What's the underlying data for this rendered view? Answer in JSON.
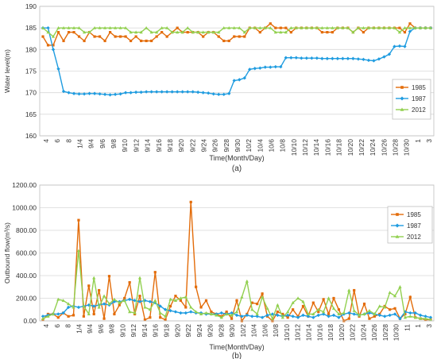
{
  "chart_data": [
    {
      "type": "line",
      "panel_label": "(a)",
      "xlabel": "Time(Month/Day)",
      "ylabel": "Water level(m)",
      "ylim": [
        160,
        190
      ],
      "yticks": [
        "160",
        "165",
        "170",
        "175",
        "180",
        "185",
        "190"
      ],
      "x_tick_labels": [
        "4",
        "6",
        "8",
        "1/4",
        "9/4",
        "9/6",
        "9/8",
        "9/10",
        "9/12",
        "9/14",
        "9/16",
        "9/18",
        "9/20",
        "9/22",
        "9/24",
        "9/26",
        "9/28",
        "9/30",
        "10/2",
        "10/4",
        "10/6",
        "10/8",
        "10/10",
        "10/12",
        "10/14",
        "10/16",
        "10/18",
        "10/20",
        "10/22",
        "10/24",
        "10/26",
        "10/28",
        "10/30",
        "1",
        "3"
      ],
      "grid": "horizontal",
      "legend_position": "right",
      "series": [
        {
          "name": "1985",
          "color": "#E36C0A",
          "marker": "square",
          "values": [
            183,
            181,
            181,
            184,
            182,
            184,
            184,
            183,
            182,
            184,
            183,
            183,
            182,
            184,
            183,
            183,
            183,
            182,
            183,
            182,
            182,
            182,
            183,
            184,
            183,
            184,
            185,
            184,
            184,
            184,
            184,
            183,
            184,
            184,
            183,
            182,
            182,
            183,
            183,
            183,
            185,
            185,
            184,
            185,
            186,
            185,
            185,
            185,
            184,
            185,
            185,
            185,
            185,
            185,
            184,
            184,
            184,
            185,
            185,
            185,
            184,
            185,
            184,
            185,
            185,
            185,
            185,
            185,
            185,
            185,
            184,
            186,
            185,
            185,
            185,
            185
          ]
        },
        {
          "name": "1987",
          "color": "#1F9CE0",
          "marker": "diamond",
          "values": [
            185,
            185,
            180,
            175.5,
            170.3,
            170,
            169.8,
            169.7,
            169.7,
            169.8,
            169.8,
            169.7,
            169.6,
            169.5,
            169.6,
            169.7,
            170,
            170,
            170.1,
            170.1,
            170.2,
            170.2,
            170.2,
            170.2,
            170.2,
            170.2,
            170.2,
            170.2,
            170.2,
            170.2,
            170.1,
            170,
            169.9,
            169.7,
            169.6,
            169.6,
            169.8,
            172.8,
            173,
            173.4,
            175.4,
            175.6,
            175.7,
            175.9,
            175.9,
            176,
            176,
            178.1,
            178.1,
            178.1,
            178,
            178,
            178,
            178,
            177.9,
            177.9,
            177.9,
            177.9,
            177.9,
            177.9,
            177.9,
            177.8,
            177.7,
            177.5,
            177.4,
            177.8,
            178.3,
            178.9,
            180.7,
            180.8,
            180.7,
            184.2,
            185,
            185,
            185,
            185
          ]
        },
        {
          "name": "2012",
          "color": "#92D050",
          "marker": "triangle",
          "values": [
            185,
            184,
            183,
            185,
            185,
            185,
            185,
            185,
            184,
            184,
            185,
            185,
            185,
            185,
            185,
            185,
            185,
            184,
            184,
            184,
            185,
            184,
            184,
            185,
            185,
            184,
            184,
            184,
            185,
            184,
            184,
            184,
            184,
            184,
            184,
            185,
            185,
            185,
            185,
            184,
            185,
            185,
            185,
            185,
            185,
            184,
            184,
            184,
            185,
            185,
            185,
            185,
            185,
            185,
            185,
            185,
            185,
            185,
            185,
            185,
            184,
            185,
            185,
            185,
            185,
            185,
            185,
            185,
            185,
            184,
            185,
            185,
            185,
            185,
            185,
            185
          ]
        }
      ]
    },
    {
      "type": "line",
      "panel_label": "(b)",
      "xlabel": "Time(Month/Day)",
      "ylabel": "Outbound  flow(m³/s)",
      "ylim": [
        0,
        1200
      ],
      "yticks": [
        "0.00",
        "200.00",
        "400.00",
        "600.00",
        "800.00",
        "1000.00",
        "1200.00"
      ],
      "x_tick_labels": [
        "4",
        "6",
        "8",
        "1/4",
        "9/4",
        "9/6",
        "9/8",
        "9/10",
        "9/12",
        "9/14",
        "9/16",
        "9/18",
        "9/20",
        "9/22",
        "9/24",
        "9/26",
        "9/28",
        "9/30",
        "10/2",
        "10/4",
        "10/6",
        "10/8",
        "10/10",
        "10/12",
        "10/14",
        "10/16",
        "10/18",
        "10/20",
        "10/22",
        "10/24",
        "10/26",
        "10/28",
        "10/30",
        "11",
        "1",
        "3"
      ],
      "grid": "horizontal",
      "legend_position": "top-right",
      "series": [
        {
          "name": "1985",
          "color": "#E36C0A",
          "marker": "square",
          "values": [
            10,
            60,
            60,
            30,
            70,
            40,
            50,
            890,
            40,
            310,
            60,
            270,
            20,
            395,
            60,
            140,
            200,
            340,
            60,
            220,
            10,
            30,
            430,
            30,
            10,
            130,
            220,
            180,
            120,
            1050,
            300,
            120,
            180,
            80,
            60,
            40,
            80,
            20,
            180,
            0,
            60,
            160,
            150,
            240,
            40,
            0,
            80,
            60,
            30,
            100,
            40,
            130,
            40,
            160,
            80,
            190,
            60,
            200,
            100,
            0,
            20,
            270,
            40,
            150,
            20,
            40,
            60,
            130,
            100,
            110,
            20,
            60,
            210,
            30,
            20,
            10,
            10
          ]
        },
        {
          "name": "1987",
          "color": "#1F9CE0",
          "marker": "diamond",
          "values": [
            40,
            50,
            60,
            60,
            70,
            120,
            130,
            120,
            130,
            140,
            130,
            140,
            150,
            140,
            170,
            170,
            180,
            190,
            180,
            170,
            180,
            170,
            160,
            130,
            100,
            90,
            80,
            70,
            70,
            80,
            70,
            70,
            60,
            60,
            60,
            70,
            60,
            70,
            50,
            40,
            50,
            40,
            40,
            30,
            50,
            60,
            50,
            40,
            50,
            40,
            30,
            50,
            40,
            30,
            50,
            60,
            40,
            50,
            30,
            60,
            70,
            60,
            50,
            60,
            70,
            60,
            50,
            40,
            50,
            60,
            20,
            80,
            70,
            70,
            50,
            40,
            30
          ]
        },
        {
          "name": "2012",
          "color": "#92D050",
          "marker": "triangle",
          "values": [
            20,
            40,
            60,
            190,
            180,
            150,
            120,
            620,
            130,
            60,
            380,
            120,
            220,
            150,
            190,
            160,
            180,
            80,
            70,
            380,
            120,
            100,
            180,
            70,
            40,
            190,
            180,
            200,
            210,
            120,
            80,
            60,
            70,
            60,
            50,
            30,
            60,
            50,
            80,
            210,
            350,
            100,
            60,
            210,
            110,
            20,
            140,
            30,
            80,
            160,
            200,
            170,
            60,
            60,
            100,
            80,
            200,
            110,
            60,
            70,
            270,
            90,
            50,
            60,
            90,
            60,
            130,
            120,
            250,
            220,
            300,
            30,
            40,
            30,
            20,
            20,
            10
          ]
        }
      ]
    }
  ]
}
